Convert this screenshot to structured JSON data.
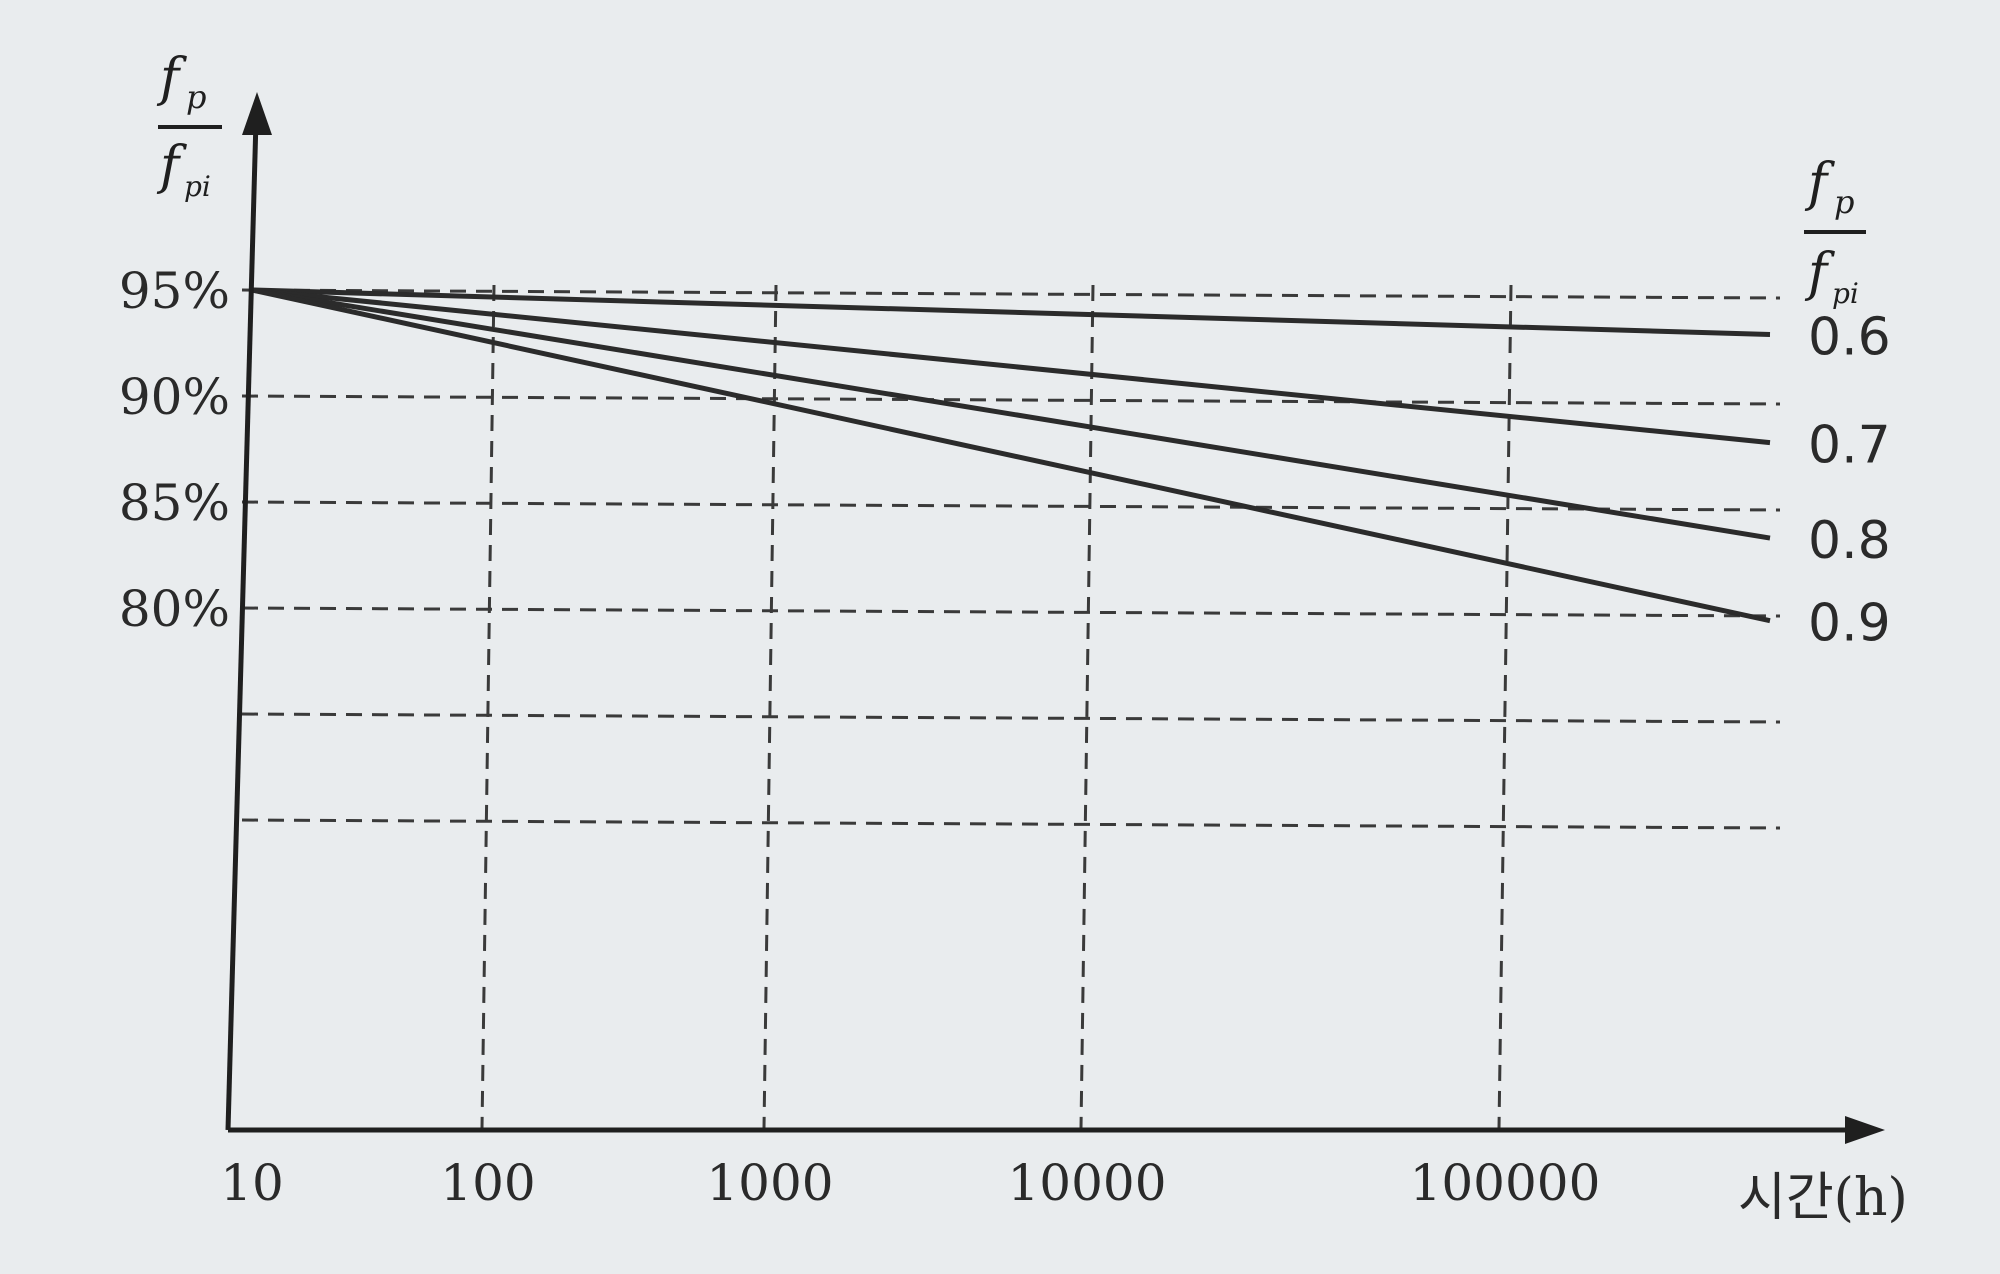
{
  "chart_data": {
    "type": "line",
    "xlabel": "시간(h)",
    "x_scale": "log",
    "x_ticks": [
      "10",
      "100",
      "1000",
      "10000",
      "100000"
    ],
    "xlim": [
      10,
      300000
    ],
    "y_ticks": [
      "95%",
      "90%",
      "85%",
      "80%"
    ],
    "y_ticks_values": [
      95,
      90,
      85,
      80
    ],
    "ylim": [
      65,
      100
    ],
    "y_axis_label": {
      "numerator": "f",
      "numerator_sub": "p",
      "denominator": "f",
      "denominator_sub": "pi"
    },
    "legend_header": {
      "numerator": "f",
      "numerator_sub": "p",
      "denominator": "f",
      "denominator_sub": "pi"
    },
    "grid": "dashed",
    "series": [
      {
        "name": "0.6",
        "x": [
          10,
          300000
        ],
        "y": [
          95,
          92.9
        ]
      },
      {
        "name": "0.7",
        "x": [
          10,
          300000
        ],
        "y": [
          95,
          87.8
        ]
      },
      {
        "name": "0.8",
        "x": [
          10,
          300000
        ],
        "y": [
          95,
          83.3
        ]
      },
      {
        "name": "0.9",
        "x": [
          10,
          300000
        ],
        "y": [
          95,
          79.4
        ]
      }
    ]
  },
  "colors": {
    "line": "#2b2b2b",
    "grid": "#3a3a3a",
    "background": "#e9ecee"
  }
}
